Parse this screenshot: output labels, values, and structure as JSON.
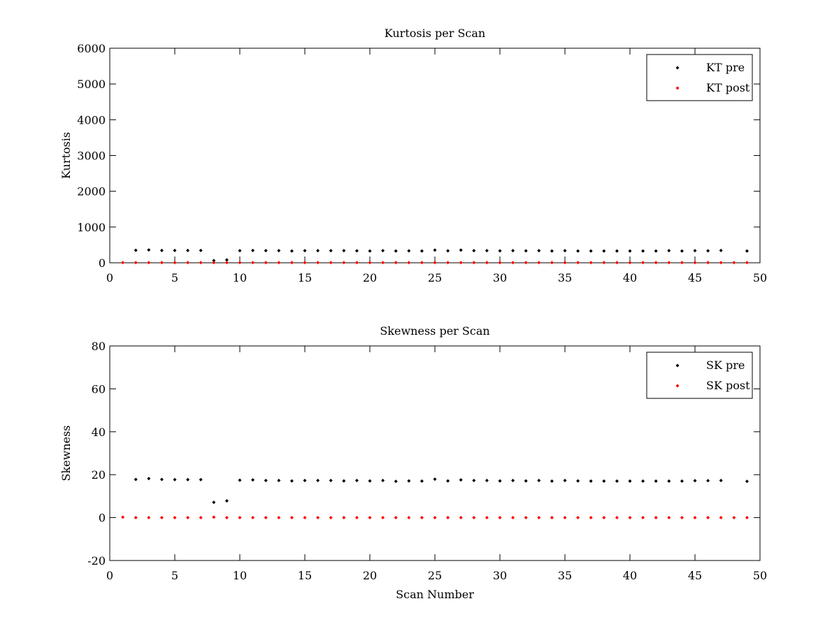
{
  "chart_data": [
    {
      "type": "scatter",
      "title": "Kurtosis per Scan",
      "xlabel": "",
      "ylabel": "Kurtosis",
      "xlim": [
        0,
        50
      ],
      "ylim": [
        0,
        6000
      ],
      "xticks": [
        0,
        5,
        10,
        15,
        20,
        25,
        30,
        35,
        40,
        45,
        50
      ],
      "yticks": [
        0,
        1000,
        2000,
        3000,
        4000,
        5000,
        6000
      ],
      "grid": false,
      "legend_position": "top-right",
      "series": [
        {
          "name": "KT pre",
          "color": "#000000",
          "x": [
            2,
            3,
            4,
            5,
            6,
            7,
            8,
            9,
            10,
            11,
            12,
            13,
            14,
            15,
            16,
            17,
            18,
            19,
            20,
            21,
            22,
            23,
            24,
            25,
            26,
            27,
            28,
            29,
            30,
            31,
            32,
            33,
            34,
            35,
            36,
            37,
            38,
            39,
            40,
            41,
            42,
            43,
            44,
            45,
            46,
            47,
            49
          ],
          "y": [
            350,
            360,
            345,
            345,
            345,
            345,
            60,
            80,
            340,
            345,
            340,
            340,
            330,
            340,
            340,
            340,
            340,
            335,
            330,
            340,
            330,
            335,
            330,
            355,
            335,
            355,
            340,
            340,
            335,
            340,
            335,
            340,
            330,
            340,
            330,
            330,
            330,
            330,
            330,
            330,
            330,
            340,
            330,
            340,
            335,
            345,
            330
          ]
        },
        {
          "name": "KT post",
          "color": "#ff0000",
          "x": [
            1,
            2,
            3,
            4,
            5,
            6,
            7,
            8,
            9,
            10,
            11,
            12,
            13,
            14,
            15,
            16,
            17,
            18,
            19,
            20,
            21,
            22,
            23,
            24,
            25,
            26,
            27,
            28,
            29,
            30,
            31,
            32,
            33,
            34,
            35,
            36,
            37,
            38,
            39,
            40,
            41,
            42,
            43,
            44,
            45,
            46,
            47,
            48,
            49
          ],
          "y": [
            5,
            5,
            5,
            5,
            5,
            5,
            5,
            5,
            5,
            5,
            5,
            5,
            5,
            5,
            5,
            5,
            5,
            5,
            5,
            5,
            5,
            5,
            5,
            5,
            5,
            5,
            5,
            5,
            5,
            5,
            5,
            5,
            5,
            5,
            5,
            5,
            5,
            5,
            5,
            5,
            5,
            5,
            5,
            5,
            5,
            5,
            5,
            5,
            5
          ]
        }
      ]
    },
    {
      "type": "scatter",
      "title": "Skewness per Scan",
      "xlabel": "Scan Number",
      "ylabel": "Skewness",
      "xlim": [
        0,
        50
      ],
      "ylim": [
        -20,
        80
      ],
      "xticks": [
        0,
        5,
        10,
        15,
        20,
        25,
        30,
        35,
        40,
        45,
        50
      ],
      "yticks": [
        -20,
        0,
        20,
        40,
        60,
        80
      ],
      "grid": false,
      "legend_position": "top-right",
      "series": [
        {
          "name": "SK pre",
          "color": "#000000",
          "x": [
            2,
            3,
            4,
            5,
            6,
            7,
            8,
            9,
            10,
            11,
            12,
            13,
            14,
            15,
            16,
            17,
            18,
            19,
            20,
            21,
            22,
            23,
            24,
            25,
            26,
            27,
            28,
            29,
            30,
            31,
            32,
            33,
            34,
            35,
            36,
            37,
            38,
            39,
            40,
            41,
            42,
            43,
            44,
            45,
            46,
            47,
            49
          ],
          "y": [
            17.8,
            18.2,
            17.8,
            17.7,
            17.7,
            17.7,
            7.1,
            7.8,
            17.4,
            17.6,
            17.3,
            17.3,
            17.1,
            17.3,
            17.3,
            17.3,
            17.1,
            17.3,
            17.1,
            17.3,
            16.9,
            17.1,
            17.0,
            17.9,
            17.1,
            17.6,
            17.3,
            17.3,
            17.1,
            17.3,
            17.1,
            17.3,
            17.0,
            17.3,
            17.1,
            17.0,
            17.0,
            17.0,
            17.0,
            17.0,
            17.0,
            17.0,
            17.0,
            17.2,
            17.2,
            17.3,
            16.9
          ]
        },
        {
          "name": "SK post",
          "color": "#ff0000",
          "x": [
            1,
            2,
            3,
            4,
            5,
            6,
            7,
            8,
            9,
            10,
            11,
            12,
            13,
            14,
            15,
            16,
            17,
            18,
            19,
            20,
            21,
            22,
            23,
            24,
            25,
            26,
            27,
            28,
            29,
            30,
            31,
            32,
            33,
            34,
            35,
            36,
            37,
            38,
            39,
            40,
            41,
            42,
            43,
            44,
            45,
            46,
            47,
            48,
            49
          ],
          "y": [
            0.2,
            0,
            0,
            0,
            0,
            0,
            0,
            0.2,
            0,
            0,
            0,
            0,
            0,
            0,
            0,
            0,
            0,
            0,
            0,
            0,
            0,
            0,
            0,
            0,
            0,
            0,
            0,
            0,
            0,
            0,
            0,
            0,
            0,
            0,
            0,
            0,
            0,
            0,
            0,
            0,
            0,
            0,
            0,
            0,
            0,
            0,
            0,
            0,
            0
          ]
        }
      ]
    }
  ]
}
